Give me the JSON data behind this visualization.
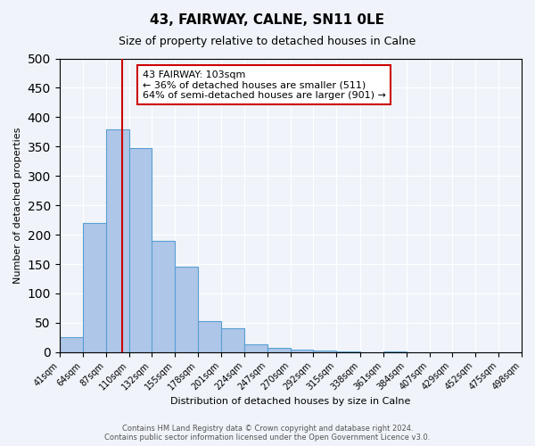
{
  "title": "43, FAIRWAY, CALNE, SN11 0LE",
  "subtitle": "Size of property relative to detached houses in Calne",
  "xlabel": "Distribution of detached houses by size in Calne",
  "ylabel": "Number of detached properties",
  "bin_labels": [
    "41sqm",
    "64sqm",
    "87sqm",
    "110sqm",
    "132sqm",
    "155sqm",
    "178sqm",
    "201sqm",
    "224sqm",
    "247sqm",
    "270sqm",
    "292sqm",
    "315sqm",
    "338sqm",
    "361sqm",
    "384sqm",
    "407sqm",
    "429sqm",
    "452sqm",
    "475sqm",
    "498sqm"
  ],
  "bin_edges": [
    41,
    64,
    87,
    110,
    132,
    155,
    178,
    201,
    224,
    247,
    270,
    292,
    315,
    338,
    361,
    384,
    407,
    429,
    452,
    475,
    498
  ],
  "bar_heights": [
    25,
    220,
    380,
    348,
    190,
    146,
    53,
    40,
    13,
    8,
    5,
    2,
    1,
    0,
    1,
    0,
    0,
    0,
    0,
    0
  ],
  "bar_color": "#aec6e8",
  "bar_edge_color": "#5a9fd4",
  "property_line_x": 103,
  "property_line_color": "#cc0000",
  "ylim": [
    0,
    500
  ],
  "yticks": [
    0,
    50,
    100,
    150,
    200,
    250,
    300,
    350,
    400,
    450,
    500
  ],
  "annotation_text": "43 FAIRWAY: 103sqm\n← 36% of detached houses are smaller (511)\n64% of semi-detached houses are larger (901) →",
  "annotation_box_color": "#ffffff",
  "annotation_box_edge_color": "#cc0000",
  "footer_text": "Contains HM Land Registry data © Crown copyright and database right 2024.\nContains public sector information licensed under the Open Government Licence v3.0.",
  "background_color": "#f0f4fa",
  "grid_color": "#ffffff"
}
